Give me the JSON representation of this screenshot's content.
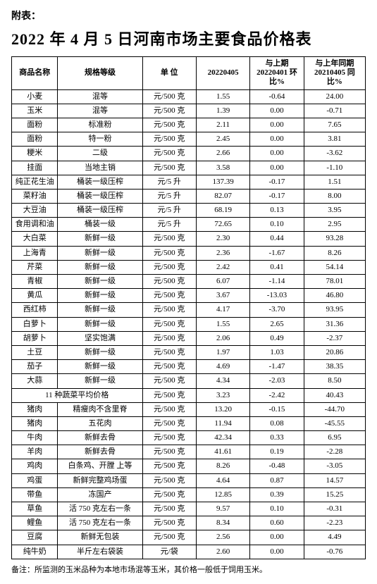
{
  "attachment_label": "附表：",
  "title": "2022 年 4 月 5 日河南市场主要食品价格表",
  "headers": {
    "name": "商品名称",
    "grade": "规格等级",
    "unit": "单 位",
    "price": "20220405",
    "mom": "与上期\n20220401\n环比%",
    "yoy": "与上年同期\n20210405\n同比%"
  },
  "rows": [
    {
      "name": "小麦",
      "grade": "混等",
      "unit": "元/500 克",
      "price": "1.55",
      "mom": "-0.64",
      "yoy": "24.00"
    },
    {
      "name": "玉米",
      "grade": "混等",
      "unit": "元/500 克",
      "price": "1.39",
      "mom": "0.00",
      "yoy": "-0.71"
    },
    {
      "name": "面粉",
      "grade": "标准粉",
      "unit": "元/500 克",
      "price": "2.11",
      "mom": "0.00",
      "yoy": "7.65"
    },
    {
      "name": "面粉",
      "grade": "特一粉",
      "unit": "元/500 克",
      "price": "2.45",
      "mom": "0.00",
      "yoy": "3.81"
    },
    {
      "name": "粳米",
      "grade": "二级",
      "unit": "元/500 克",
      "price": "2.66",
      "mom": "0.00",
      "yoy": "-3.62"
    },
    {
      "name": "挂面",
      "grade": "当地主销",
      "unit": "元/500 克",
      "price": "3.58",
      "mom": "0.00",
      "yoy": "-1.10"
    },
    {
      "name": "纯正花生油",
      "grade": "桶装一级压榨",
      "unit": "元/5 升",
      "price": "137.39",
      "mom": "-0.17",
      "yoy": "1.51"
    },
    {
      "name": "菜籽油",
      "grade": "桶装一级压榨",
      "unit": "元/5 升",
      "price": "82.07",
      "mom": "-0.17",
      "yoy": "8.00"
    },
    {
      "name": "大豆油",
      "grade": "桶装一级压榨",
      "unit": "元/5 升",
      "price": "68.19",
      "mom": "0.13",
      "yoy": "3.95"
    },
    {
      "name": "食用调和油",
      "grade": "桶装一级",
      "unit": "元/5 升",
      "price": "72.65",
      "mom": "0.10",
      "yoy": "2.95"
    },
    {
      "name": "大白菜",
      "grade": "新鲜一级",
      "unit": "元/500 克",
      "price": "2.30",
      "mom": "0.44",
      "yoy": "93.28"
    },
    {
      "name": "上海青",
      "grade": "新鲜一级",
      "unit": "元/500 克",
      "price": "2.36",
      "mom": "-1.67",
      "yoy": "8.26"
    },
    {
      "name": "芹菜",
      "grade": "新鲜一级",
      "unit": "元/500 克",
      "price": "2.42",
      "mom": "0.41",
      "yoy": "54.14"
    },
    {
      "name": "青椒",
      "grade": "新鲜一级",
      "unit": "元/500 克",
      "price": "6.07",
      "mom": "-1.14",
      "yoy": "78.01"
    },
    {
      "name": "黄瓜",
      "grade": "新鲜一级",
      "unit": "元/500 克",
      "price": "3.67",
      "mom": "-13.03",
      "yoy": "46.80"
    },
    {
      "name": "西红柿",
      "grade": "新鲜一级",
      "unit": "元/500 克",
      "price": "4.17",
      "mom": "-3.70",
      "yoy": "93.95"
    },
    {
      "name": "白萝卜",
      "grade": "新鲜一级",
      "unit": "元/500 克",
      "price": "1.55",
      "mom": "2.65",
      "yoy": "31.36"
    },
    {
      "name": "胡萝卜",
      "grade": "坚实饱满",
      "unit": "元/500 克",
      "price": "2.06",
      "mom": "0.49",
      "yoy": "-2.37"
    },
    {
      "name": "土豆",
      "grade": "新鲜一级",
      "unit": "元/500 克",
      "price": "1.97",
      "mom": "1.03",
      "yoy": "20.86"
    },
    {
      "name": "茄子",
      "grade": "新鲜一级",
      "unit": "元/500 克",
      "price": "4.69",
      "mom": "-1.47",
      "yoy": "38.35"
    },
    {
      "name": "大蒜",
      "grade": "新鲜一级",
      "unit": "元/500 克",
      "price": "4.34",
      "mom": "-2.03",
      "yoy": "8.50"
    },
    {
      "name": "",
      "grade": "11 种蔬菜平均价格",
      "unit": "元/500 克",
      "price": "3.23",
      "mom": "-2.42",
      "yoy": "40.43",
      "merged": true
    },
    {
      "name": "猪肉",
      "grade": "精瘦肉不含里脊",
      "unit": "元/500 克",
      "price": "13.20",
      "mom": "-0.15",
      "yoy": "-44.70"
    },
    {
      "name": "猪肉",
      "grade": "五花肉",
      "unit": "元/500 克",
      "price": "11.94",
      "mom": "0.08",
      "yoy": "-45.55"
    },
    {
      "name": "牛肉",
      "grade": "新鲜去骨",
      "unit": "元/500 克",
      "price": "42.34",
      "mom": "0.33",
      "yoy": "6.95"
    },
    {
      "name": "羊肉",
      "grade": "新鲜去骨",
      "unit": "元/500 克",
      "price": "41.61",
      "mom": "0.19",
      "yoy": "-2.28"
    },
    {
      "name": "鸡肉",
      "grade": "白条鸡、开膛 上等",
      "unit": "元/500 克",
      "price": "8.26",
      "mom": "-0.48",
      "yoy": "-3.05"
    },
    {
      "name": "鸡蛋",
      "grade": "新鲜完整鸡场蛋",
      "unit": "元/500 克",
      "price": "4.64",
      "mom": "0.87",
      "yoy": "14.57"
    },
    {
      "name": "带鱼",
      "grade": "冻国产",
      "unit": "元/500 克",
      "price": "12.85",
      "mom": "0.39",
      "yoy": "15.25"
    },
    {
      "name": "草鱼",
      "grade": "活 750 克左右一条",
      "unit": "元/500 克",
      "price": "9.57",
      "mom": "0.10",
      "yoy": "-0.31"
    },
    {
      "name": "鲤鱼",
      "grade": "活 750 克左右一条",
      "unit": "元/500 克",
      "price": "8.34",
      "mom": "0.60",
      "yoy": "-2.23"
    },
    {
      "name": "豆腐",
      "grade": "新鲜无包装",
      "unit": "元/500 克",
      "price": "2.56",
      "mom": "0.00",
      "yoy": "4.49"
    },
    {
      "name": "纯牛奶",
      "grade": "半斤左右袋装",
      "unit": "元/袋",
      "price": "2.60",
      "mom": "0.00",
      "yoy": "-0.76"
    }
  ],
  "footnote": "备注：所监测的玉米品种为本地市场混等玉米，其价格一般低于饲用玉米。"
}
